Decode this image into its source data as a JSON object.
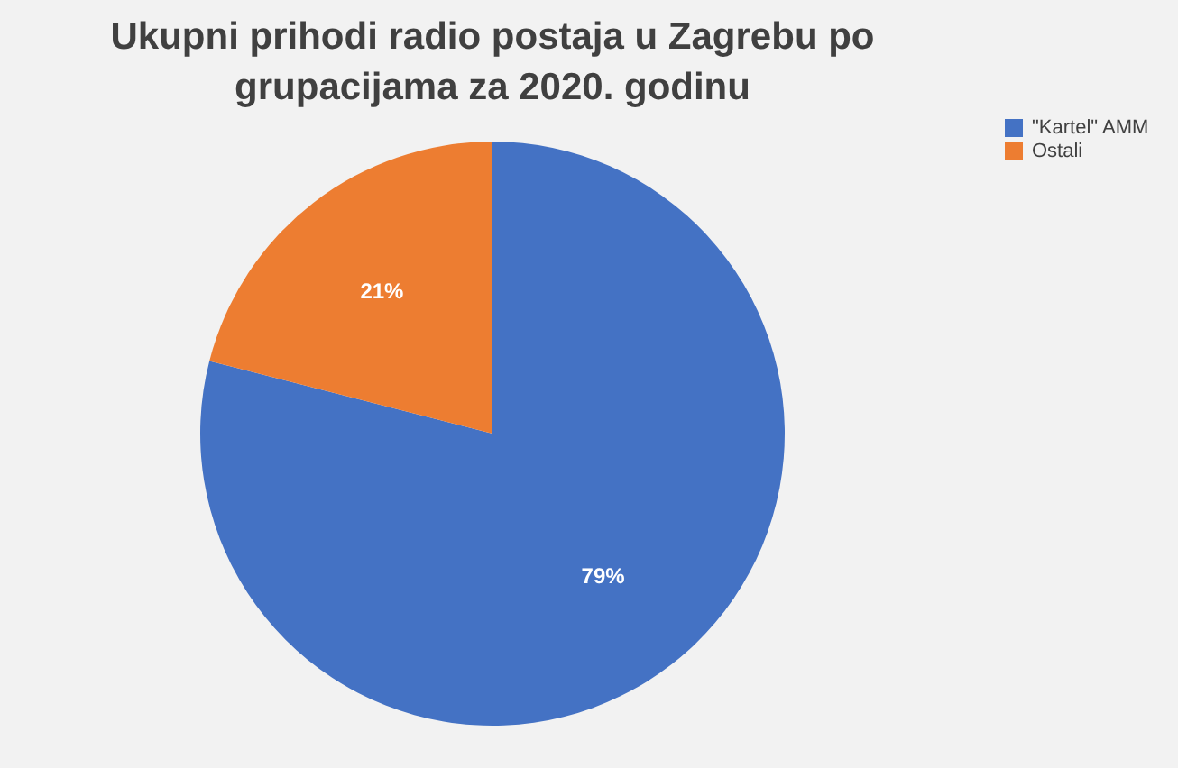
{
  "chart_data": {
    "type": "pie",
    "title": "Ukupni prihodi radio postaja u Zagrebu po grupacijama za 2020. godinu",
    "categories": [
      "\"Kartel\" AMM",
      "Ostali"
    ],
    "values": [
      79,
      21
    ],
    "value_labels": [
      "79%",
      "21%"
    ],
    "colors": [
      "#4472c4",
      "#ed7d31"
    ],
    "legend": "right"
  }
}
